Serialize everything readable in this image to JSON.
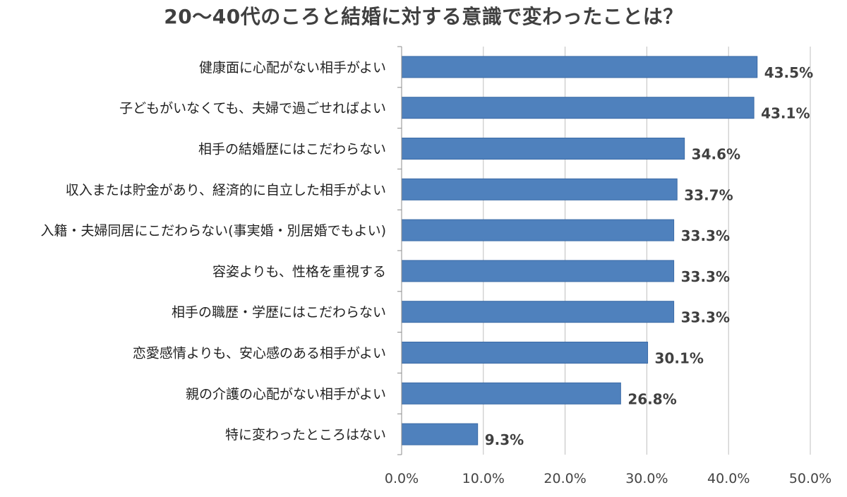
{
  "chart_data": {
    "type": "bar",
    "orientation": "horizontal",
    "title": "20～40代のころと結婚に対する意識で変わったことは？",
    "categories": [
      "健康面に心配がない相手がよい",
      "子どもがいなくても、夫婦で過ごせればよい",
      "相手の結婚歴にはこだわらない",
      "収入または貯金があり、経済的に自立した相手がよい",
      "入籍・夫婦同居にこだわらない(事実婚・別居婚でもよい)",
      "容姿よりも、性格を重視する",
      "相手の職歴・学歴にはこだわらない",
      "恋愛感情よりも、安心感のある相手がよい",
      "親の介護の心配がない相手がよい",
      "特に変わったところはない"
    ],
    "values": [
      43.5,
      43.1,
      34.6,
      33.7,
      33.3,
      33.3,
      33.3,
      30.1,
      26.8,
      9.3
    ],
    "value_labels": [
      "43.5%",
      "43.1%",
      "34.6%",
      "33.7%",
      "33.3%",
      "33.3%",
      "33.3%",
      "30.1%",
      "26.8%",
      "9.3%"
    ],
    "xlim": [
      0,
      50
    ],
    "xticks": [
      0,
      10,
      20,
      30,
      40,
      50
    ],
    "xtick_labels": [
      "0.0%",
      "10.0%",
      "20.0%",
      "30.0%",
      "40.0%",
      "50.0%"
    ],
    "xlabel": "",
    "ylabel": "",
    "grid": true,
    "legend": "none",
    "colors": {
      "bar": "#4f81bd",
      "bar_border": "#3a6aa6",
      "grid": "#bfbfbf",
      "axis": "#8c8c8c"
    }
  }
}
